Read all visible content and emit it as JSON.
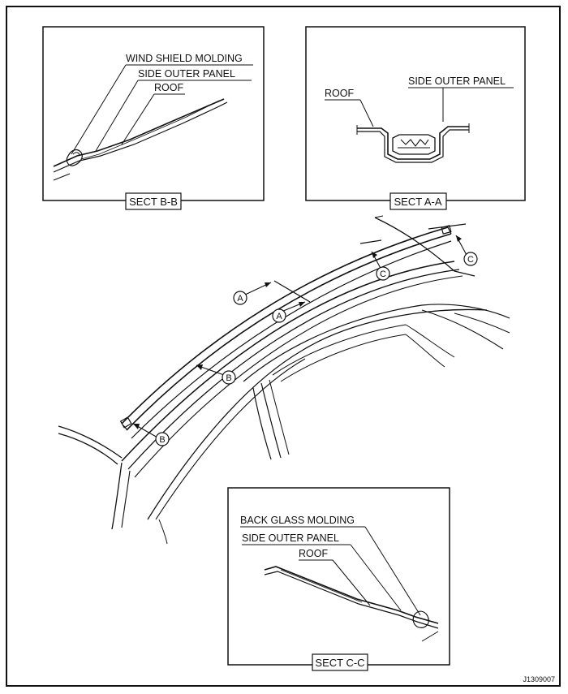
{
  "sect_bb": {
    "title": "SECT B-B",
    "labels": [
      "WIND SHIELD MOLDING",
      "SIDE OUTER PANEL",
      "ROOF"
    ]
  },
  "sect_aa": {
    "title": "SECT A-A",
    "labels": [
      "ROOF",
      "SIDE OUTER PANEL"
    ]
  },
  "sect_cc": {
    "title": "SECT C-C",
    "labels": [
      "BACK GLASS MOLDING",
      "SIDE OUTER PANEL",
      "ROOF"
    ]
  },
  "markers": {
    "a": "A",
    "b": "B",
    "c": "C"
  },
  "figure_code": "J1309007"
}
